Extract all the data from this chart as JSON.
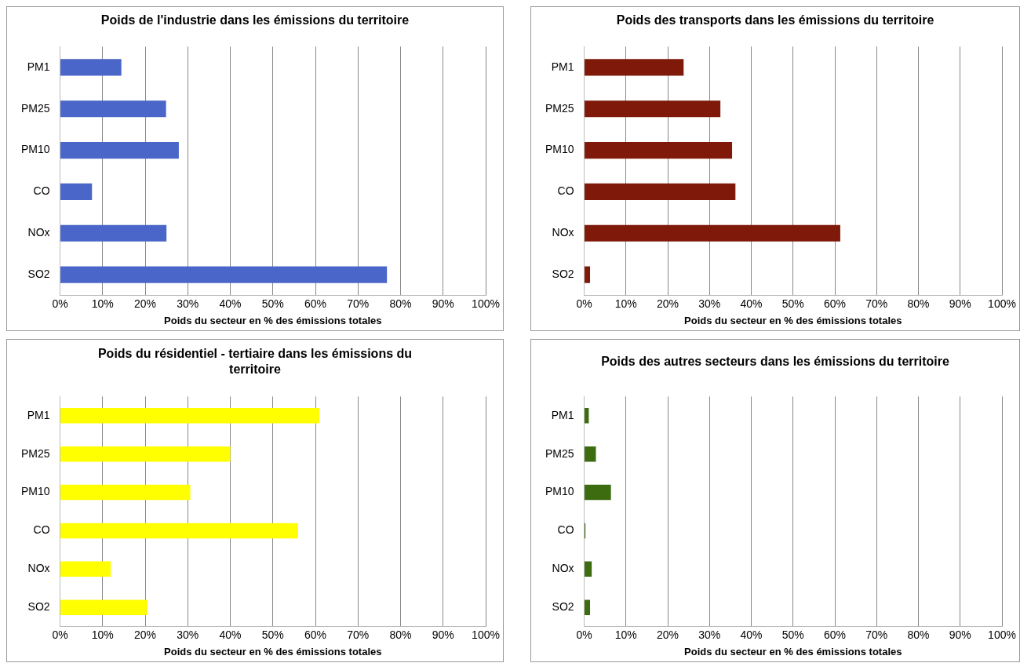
{
  "chart_data": [
    {
      "type": "bar",
      "orientation": "horizontal",
      "title": "Poids de l'industrie dans les émissions du territoire",
      "xlabel": "Poids du secteur en % des émissions totales",
      "categories": [
        "PM1",
        "PM25",
        "PM10",
        "CO",
        "NOx",
        "SO2"
      ],
      "values": [
        14.4,
        24.9,
        27.9,
        7.5,
        25,
        76.8
      ],
      "color": "#4a66c8",
      "xlim": [
        0,
        100
      ],
      "xticks": [
        {
          "value": 0,
          "label": "0%"
        },
        {
          "value": 10,
          "label": "10%"
        },
        {
          "value": 20,
          "label": "20%"
        },
        {
          "value": 30,
          "label": "30%"
        },
        {
          "value": 40,
          "label": "40%"
        },
        {
          "value": 50,
          "label": "50%"
        },
        {
          "value": 60,
          "label": "60%"
        },
        {
          "value": 70,
          "label": "70%"
        },
        {
          "value": 80,
          "label": "80%"
        },
        {
          "value": 90,
          "label": "90%"
        },
        {
          "value": 100,
          "label": "100%"
        }
      ],
      "grid": "x"
    },
    {
      "type": "bar",
      "orientation": "horizontal",
      "title": "Poids des transports dans les émissions du territoire",
      "xlabel": "Poids du secteur en % des émissions totales",
      "categories": [
        "PM1",
        "PM25",
        "PM10",
        "CO",
        "NOx",
        "SO2"
      ],
      "values": [
        23.8,
        32.6,
        35.4,
        36.2,
        61.3,
        1.4
      ],
      "color": "#7f1a0a",
      "xlim": [
        0,
        100
      ],
      "xticks": [
        {
          "value": 0,
          "label": "0%"
        },
        {
          "value": 10,
          "label": "10%"
        },
        {
          "value": 20,
          "label": "20%"
        },
        {
          "value": 30,
          "label": "30%"
        },
        {
          "value": 40,
          "label": "40%"
        },
        {
          "value": 50,
          "label": "50%"
        },
        {
          "value": 60,
          "label": "60%"
        },
        {
          "value": 70,
          "label": "70%"
        },
        {
          "value": 80,
          "label": "80%"
        },
        {
          "value": 90,
          "label": "90%"
        },
        {
          "value": 100,
          "label": "100%"
        }
      ],
      "grid": "x"
    },
    {
      "type": "bar",
      "orientation": "horizontal",
      "title": "Poids du résidentiel - tertiaire dans les émissions du territoire",
      "xlabel": "Poids du secteur en % des émissions totales",
      "categories": [
        "PM1",
        "PM25",
        "PM10",
        "CO",
        "NOx",
        "SO2"
      ],
      "values": [
        60.9,
        40,
        30.6,
        55.9,
        11.9,
        20.5
      ],
      "color": "#ffff00",
      "xlim": [
        0,
        100
      ],
      "xticks": [
        {
          "value": 0,
          "label": "0%"
        },
        {
          "value": 10,
          "label": "10%"
        },
        {
          "value": 20,
          "label": "20%"
        },
        {
          "value": 30,
          "label": "30%"
        },
        {
          "value": 40,
          "label": "40%"
        },
        {
          "value": 50,
          "label": "50%"
        },
        {
          "value": 60,
          "label": "60%"
        },
        {
          "value": 70,
          "label": "70%"
        },
        {
          "value": 80,
          "label": "80%"
        },
        {
          "value": 90,
          "label": "90%"
        },
        {
          "value": 100,
          "label": "100%"
        }
      ],
      "grid": "x"
    },
    {
      "type": "bar",
      "orientation": "horizontal",
      "title": "Poids des autres secteurs dans les émissions du territoire",
      "xlabel": "Poids du secteur en % des émissions totales",
      "categories": [
        "PM1",
        "PM25",
        "PM10",
        "CO",
        "NOx",
        "SO2"
      ],
      "values": [
        1.1,
        2.8,
        6.4,
        0.3,
        1.8,
        1.4
      ],
      "color": "#3d6b10",
      "xlim": [
        0,
        100
      ],
      "xticks": [
        {
          "value": 0,
          "label": "0%"
        },
        {
          "value": 10,
          "label": "10%"
        },
        {
          "value": 20,
          "label": "20%"
        },
        {
          "value": 30,
          "label": "30%"
        },
        {
          "value": 40,
          "label": "40%"
        },
        {
          "value": 50,
          "label": "50%"
        },
        {
          "value": 60,
          "label": "60%"
        },
        {
          "value": 70,
          "label": "70%"
        },
        {
          "value": 80,
          "label": "80%"
        },
        {
          "value": 90,
          "label": "90%"
        },
        {
          "value": 100,
          "label": "100%"
        }
      ],
      "grid": "x"
    }
  ]
}
